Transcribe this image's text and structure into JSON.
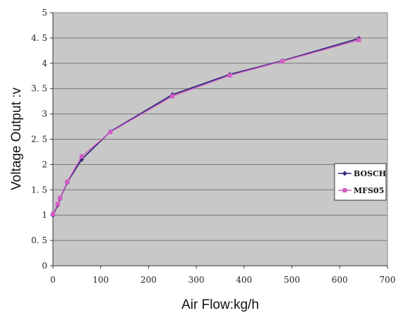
{
  "chart_data": {
    "type": "line",
    "title": "",
    "xlabel": "Air Flow:kg/h",
    "ylabel": "Voltage Output :v",
    "xlim": [
      0,
      700
    ],
    "ylim": [
      0,
      5
    ],
    "x_ticks": [
      "0",
      "100",
      "200",
      "300",
      "400",
      "500",
      "600",
      "700"
    ],
    "y_ticks": [
      "0",
      "0. 5",
      "1",
      "1. 5",
      "2",
      "2. 5",
      "3",
      "3. 5",
      "4",
      "4. 5",
      "5"
    ],
    "grid": "horizontal",
    "legend_position": "right",
    "series": [
      {
        "name": "BOSCH",
        "color": "#2e2a7a",
        "marker": "diamond",
        "x": [
          0,
          10,
          15,
          30,
          60,
          120,
          250,
          370,
          480,
          640
        ],
        "y": [
          1.0,
          1.2,
          1.33,
          1.65,
          2.1,
          2.65,
          3.38,
          3.78,
          4.05,
          4.49
        ]
      },
      {
        "name": "MFS05",
        "color": "#d65bc6",
        "marker": "square",
        "x": [
          0,
          10,
          15,
          30,
          60,
          120,
          250,
          370,
          480,
          640
        ],
        "y": [
          1.02,
          1.22,
          1.34,
          1.66,
          2.16,
          2.64,
          3.35,
          3.76,
          4.04,
          4.46
        ]
      }
    ]
  }
}
